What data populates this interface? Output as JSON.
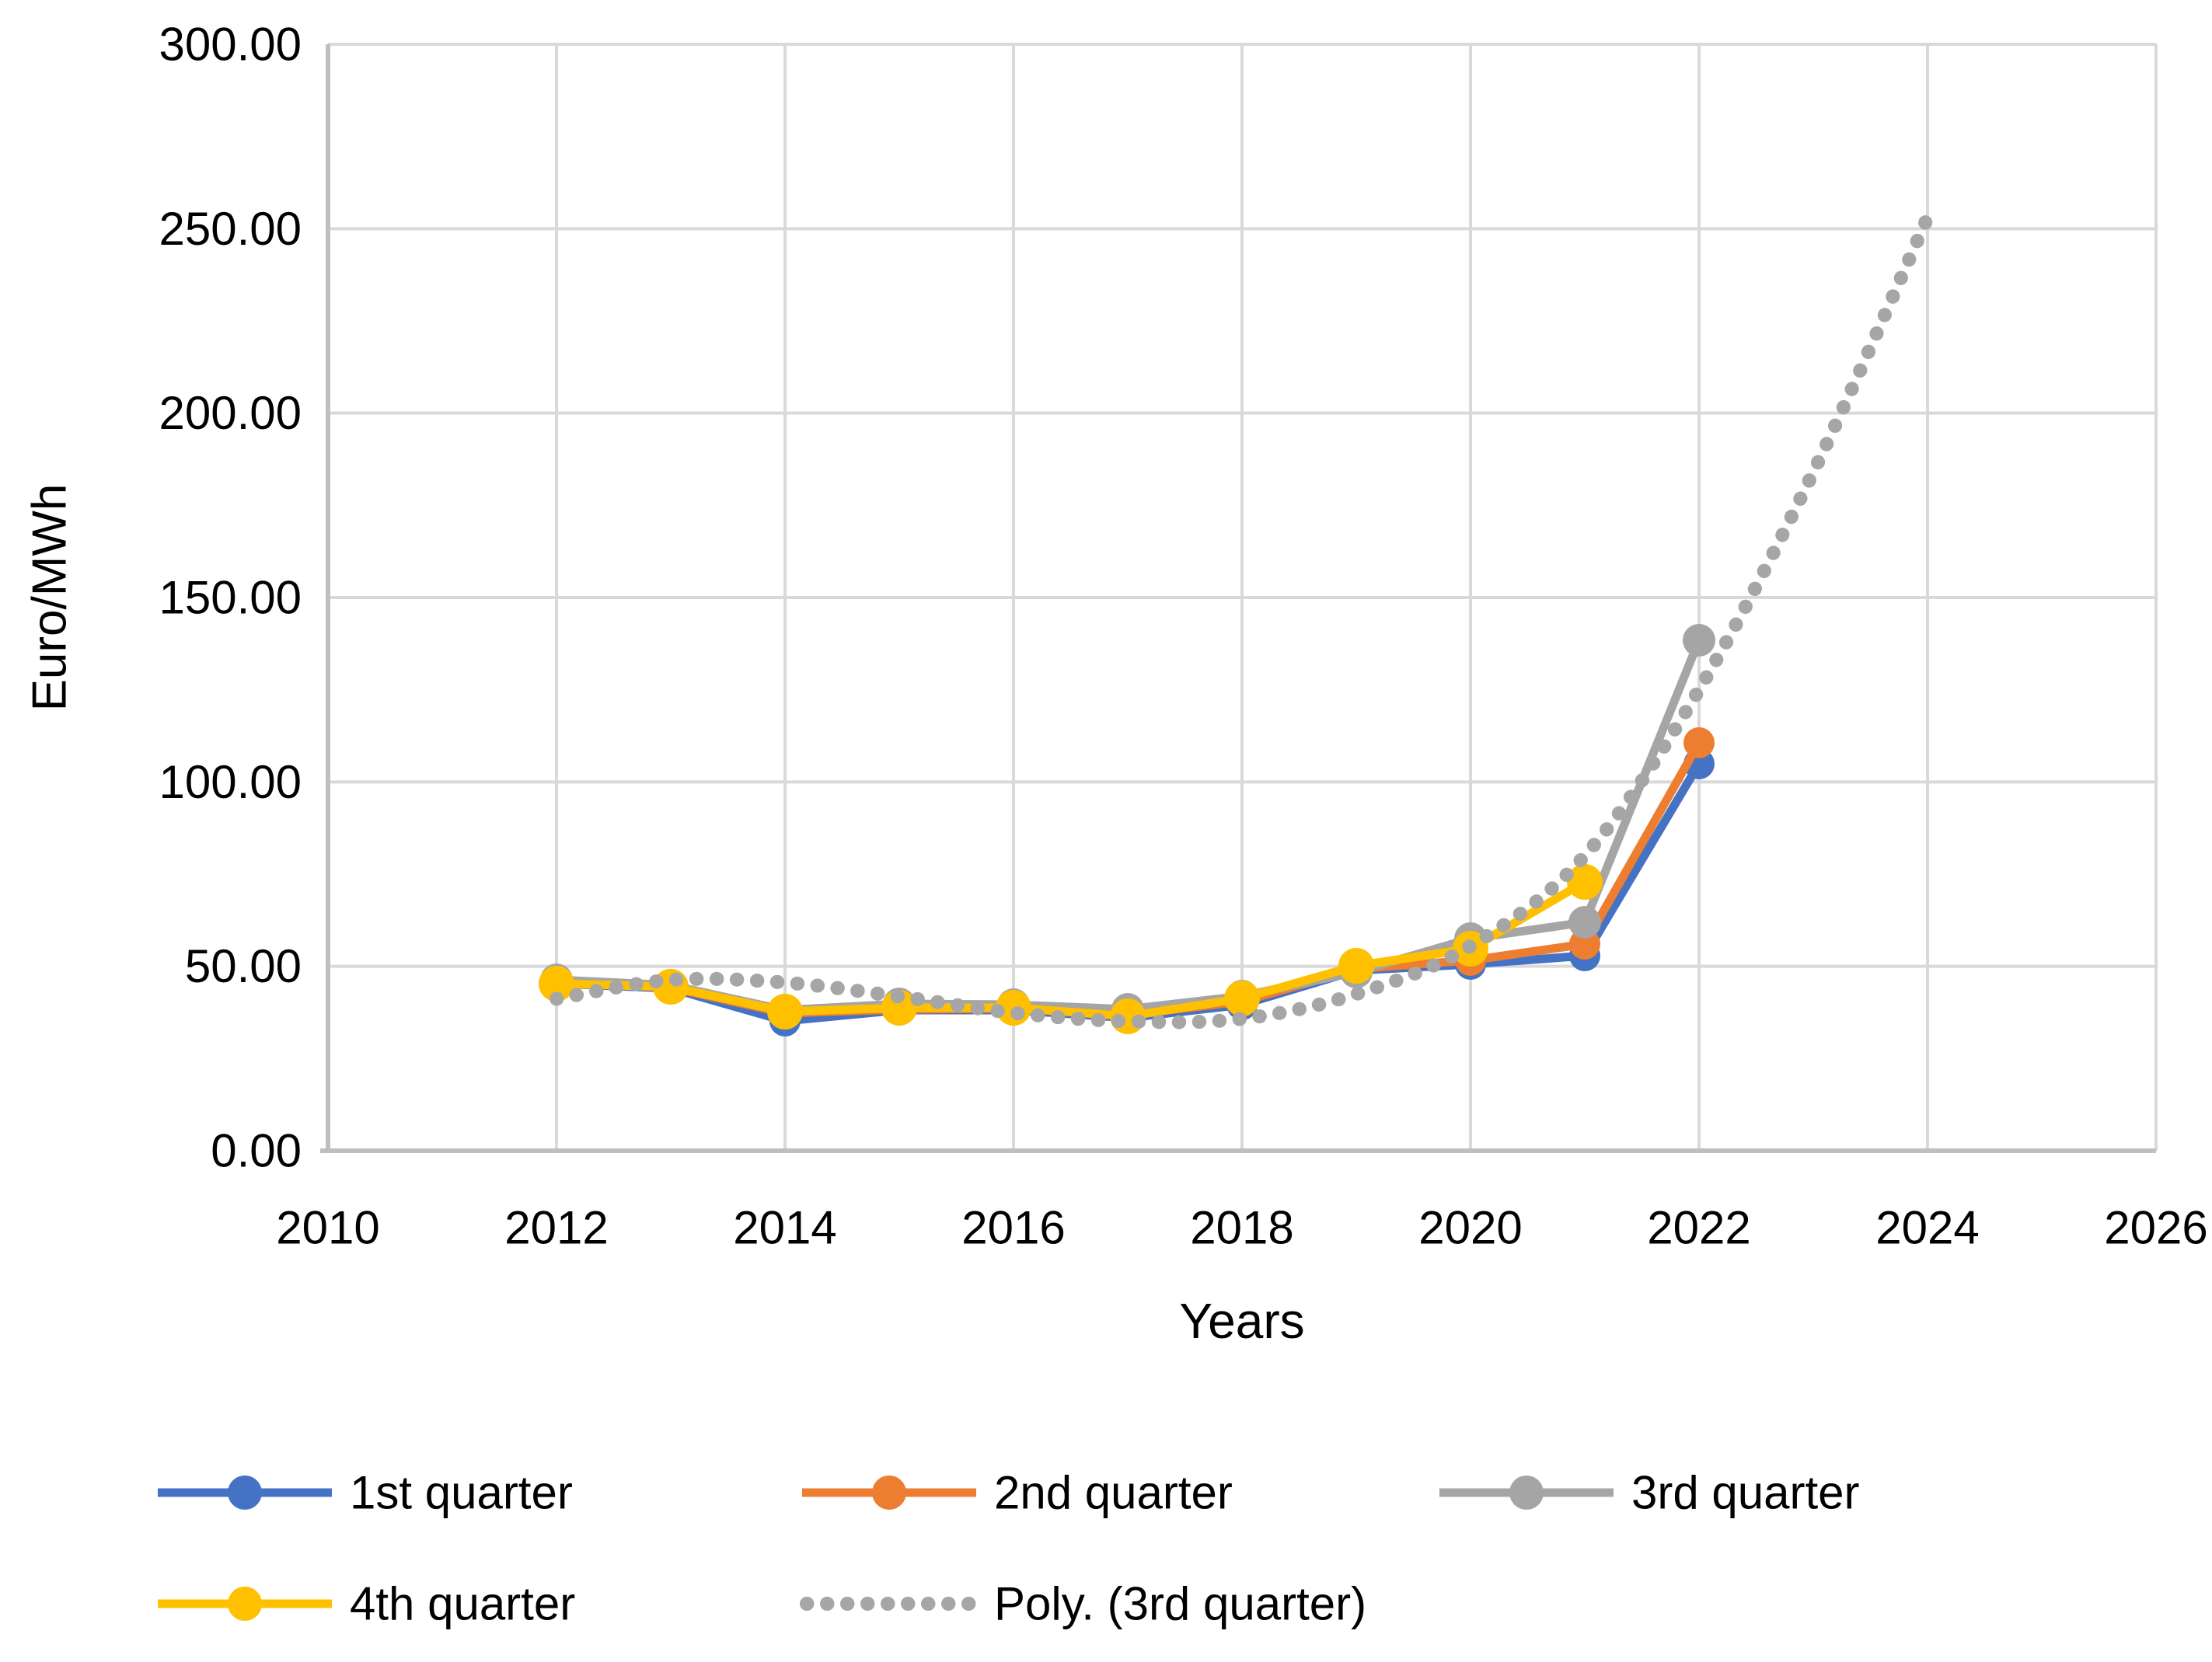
{
  "chart_data": {
    "type": "line",
    "title": "",
    "xlabel": "Years",
    "ylabel": "Euro/MWh",
    "xlim": [
      2010,
      2026
    ],
    "ylim": [
      0,
      300
    ],
    "grid": true,
    "legend_position": "bottom",
    "x_ticks": [
      2010,
      2012,
      2014,
      2016,
      2018,
      2020,
      2022,
      2024,
      2026
    ],
    "x_tick_labels": [
      "2010",
      "2012",
      "2014",
      "2016",
      "2018",
      "2020",
      "2022",
      "2024",
      "2026"
    ],
    "y_ticks": [
      0,
      50,
      100,
      150,
      200,
      250,
      300
    ],
    "y_tick_labels": [
      "0.00",
      "50.00",
      "100.00",
      "150.00",
      "200.00",
      "250.00",
      "300.00"
    ],
    "series": [
      {
        "name": "1st quarter",
        "kind": "line-markers",
        "color": "#4472C4",
        "years": [
          2012,
          2013,
          2014,
          2015,
          2016,
          2017,
          2018,
          2019,
          2020,
          2021,
          2022
        ],
        "values": [
          45.4,
          44.1,
          35.2,
          38.2,
          38.1,
          36.0,
          39.6,
          48.8,
          50.6,
          52.8,
          105.0
        ]
      },
      {
        "name": "2nd quarter",
        "kind": "line-markers",
        "color": "#ED7D31",
        "years": [
          2012,
          2013,
          2014,
          2015,
          2016,
          2017,
          2018,
          2019,
          2020,
          2021,
          2022
        ],
        "values": [
          45.7,
          44.3,
          37.2,
          38.4,
          38.6,
          36.9,
          40.4,
          49.2,
          51.6,
          56.0,
          110.5
        ]
      },
      {
        "name": "3rd quarter",
        "kind": "line-markers",
        "color": "#A5A5A5",
        "years": [
          2012,
          2013,
          2014,
          2015,
          2016,
          2017,
          2018,
          2019,
          2020,
          2021,
          2022
        ],
        "values": [
          46.3,
          44.8,
          38.2,
          39.9,
          39.7,
          38.4,
          42.0,
          48.5,
          57.5,
          62.0,
          138.5
        ]
      },
      {
        "name": "4th quarter",
        "kind": "line-markers",
        "color": "#FFC000",
        "years": [
          2012,
          2013,
          2014,
          2015,
          2016,
          2017,
          2018,
          2019,
          2020,
          2021
        ],
        "values": [
          45.4,
          44.4,
          37.7,
          38.8,
          38.8,
          36.4,
          41.3,
          50.1,
          54.8,
          72.8
        ]
      },
      {
        "name": "Poly. (3rd quarter)",
        "kind": "dotted-trendline",
        "color": "#A6A6A6",
        "years": [
          2012,
          2013,
          2014,
          2015,
          2016,
          2017,
          2018,
          2019,
          2020,
          2021,
          2022,
          2023,
          2024
        ],
        "values": [
          41.2,
          46.3,
          45.6,
          41.8,
          37.4,
          35.1,
          35.8,
          42.5,
          55.5,
          80.0,
          125.0,
          184.0,
          253.0
        ]
      }
    ],
    "colors": {
      "gridline": "#D9D9D9",
      "axis_line": "#BFBFBF",
      "text": "#000000"
    }
  }
}
